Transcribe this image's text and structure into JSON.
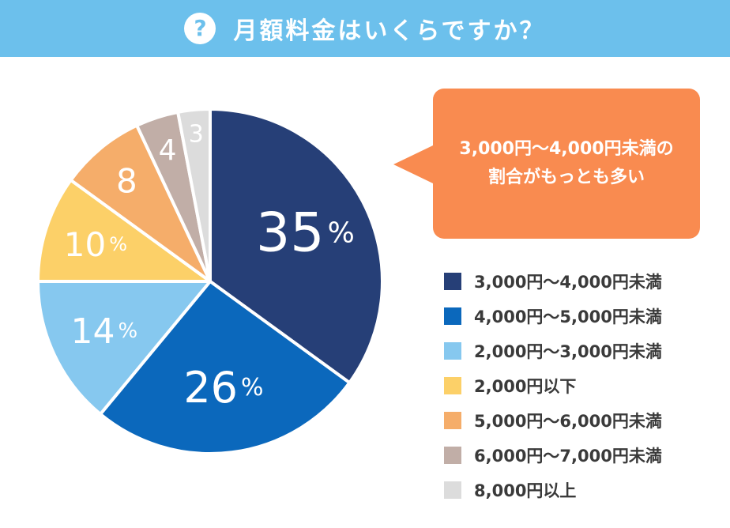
{
  "header": {
    "icon": "question-icon",
    "icon_glyph": "?",
    "title": "月額料金はいくらですか？"
  },
  "callout": {
    "line1": "3,000円〜4,000円未満の",
    "line2": "割合がもっとも多い"
  },
  "chart_data": {
    "type": "pie",
    "title": "月額料金はいくらですか？",
    "unit": "%",
    "slices": [
      {
        "label": "3,000円〜4,000円未満",
        "value": 35,
        "display": "35",
        "color": "#263f77"
      },
      {
        "label": "4,000円〜5,000円未満",
        "value": 26,
        "display": "26",
        "color": "#0b68bc"
      },
      {
        "label": "2,000円〜3,000円未満",
        "value": 14,
        "display": "14",
        "color": "#86c8ef"
      },
      {
        "label": "2,000円以下",
        "value": 10,
        "display": "10",
        "color": "#fcd068"
      },
      {
        "label": "5,000円〜6,000円未満",
        "value": 8,
        "display": "8",
        "color": "#f5ad6a"
      },
      {
        "label": "6,000円〜7,000円未満",
        "value": 4,
        "display": "4",
        "color": "#c1aea7"
      },
      {
        "label": "8,000円以上",
        "value": 3,
        "display": "3",
        "color": "#dcdcdc"
      }
    ]
  }
}
